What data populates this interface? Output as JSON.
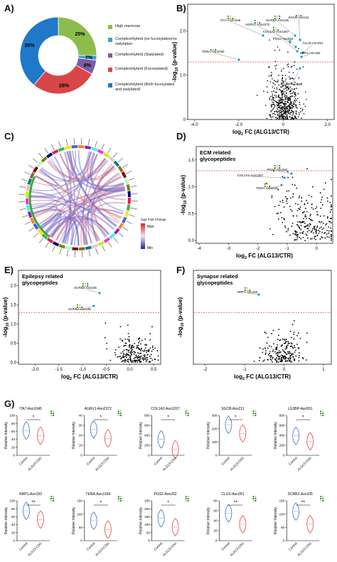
{
  "panels": {
    "A": {
      "letter": "A)"
    },
    "B": {
      "letter": "B)"
    },
    "C": {
      "letter": "C)"
    },
    "D": {
      "letter": "D)"
    },
    "E": {
      "letter": "E)"
    },
    "F": {
      "letter": "F)"
    },
    "G": {
      "letter": "G)"
    }
  },
  "pie": {
    "slices": [
      {
        "label": "High mannose",
        "pct": "25%",
        "value": 25,
        "color": "#8cbd4c"
      },
      {
        "label": "Complex/Hybrid (no fucosylation/no sialylation",
        "pct": "2%",
        "value": 2,
        "color": "#3f9fcf"
      },
      {
        "label": "Complex/Hybrid (Sialylated)",
        "pct": "6%",
        "value": 6,
        "color": "#7a5ca8"
      },
      {
        "label": "Complex/Hybrid (Fucosylated)",
        "pct": "28%",
        "value": 28,
        "color": "#d94647"
      },
      {
        "label": "Complex/Hybrid (Both fucosylated and sialylated)",
        "pct": "39%",
        "value": 39,
        "color": "#1f78c8"
      }
    ]
  },
  "volcano": {
    "ylabel": "-log10 (p-value)",
    "xlabel": "log2 FC (ALG13/CTR)",
    "B": {
      "xticks": [
        "-4.0",
        "-2.0",
        "0",
        "2.0"
      ],
      "yticks": [
        "2.0",
        "1.0",
        "0"
      ],
      "labels": [
        "ITA7-Asn1045",
        "AGRV1-Asn2372",
        "SCRB2-Asn105",
        "SGCB-Asn211",
        "COL1A2-Asn1267",
        "PGS2-Asn262",
        "CLUS-Asn291",
        "NRP1-Asn150",
        "TENA-Asn1034",
        "LG3BP-Asn551"
      ]
    },
    "D": {
      "title": "ECM related glycopeptides",
      "xticks": [
        "-4",
        "-3",
        "-2",
        "-1",
        "0"
      ],
      "yticks": [
        "1.5",
        "1.0",
        "0.5",
        "0.0"
      ],
      "labels": [
        "PGS2-Asn262",
        "COL1A2-Asn1267",
        "TENA-Asn1034"
      ]
    },
    "E": {
      "title": "Epilepsy related glycopeptides",
      "xticks": [
        "-2.0",
        "-1.5",
        "-1.0",
        "-0.5",
        "0.0",
        "0.5"
      ],
      "yticks": [
        "2.0",
        "1.5",
        "1.0",
        "0.5",
        "0.0"
      ],
      "labels": [
        "SCRB2-Asn105",
        "SCRB2-Asn105"
      ]
    },
    "F": {
      "title": "Synapse related glycopeptides",
      "xticks": [
        "-2",
        "-1",
        "0",
        "1"
      ],
      "yticks": [],
      "labels": [
        "NRP1-Asn150"
      ]
    }
  },
  "chord": {
    "legend_title": "log2 Fold Change",
    "legend_max": "Max",
    "legend_min": "Min"
  },
  "violins": {
    "ylabel": "Relative Intensity",
    "x1": "Control",
    "x2": "ALG13-CDG",
    "items": [
      {
        "name": "ITA7-Asn1045",
        "sig": "*",
        "ticks": [
          "100",
          "80",
          "60",
          "40",
          "20",
          "0"
        ],
        "max": 100,
        "c": 62,
        "a": 49
      },
      {
        "name": "AGRV1-Asn2372",
        "sig": "*",
        "ticks": [
          "40",
          "30",
          "20",
          "10",
          "0"
        ],
        "max": 40,
        "c": 26,
        "a": 17
      },
      {
        "name": "COL1A2-Asn1267",
        "sig": "*",
        "ticks": [
          "800",
          "600",
          "400",
          "200",
          "0"
        ],
        "max": 800,
        "c": 320,
        "a": 120
      },
      {
        "name": "SGCB-Asn211",
        "sig": "*",
        "ticks": [
          "300",
          "200",
          "100",
          "0"
        ],
        "max": 300,
        "c": 230,
        "a": 165
      },
      {
        "name": "LG3BP-Asn551",
        "sig": "*",
        "ticks": [
          "800",
          "600",
          "400",
          "200",
          "0"
        ],
        "max": 800,
        "c": 390,
        "a": 280
      },
      {
        "name": "NRP1-Asn150",
        "sig": "**",
        "ticks": [
          "100",
          "80",
          "60",
          "40",
          "20",
          "0"
        ],
        "max": 100,
        "c": 75,
        "a": 53
      },
      {
        "name": "TENA-Asn1034",
        "sig": "*",
        "ticks": [
          "150",
          "100",
          "50",
          "0"
        ],
        "max": 150,
        "c": 75,
        "a": 42
      },
      {
        "name": "PGS2-Asn262",
        "sig": "*",
        "ticks": [
          "250",
          "200",
          "150",
          "100",
          "50",
          "0"
        ],
        "max": 250,
        "c": 140,
        "a": 85
      },
      {
        "name": "CLUS-Asn291",
        "sig": "**",
        "ticks": [
          "80",
          "60",
          "40",
          "20",
          "0"
        ],
        "max": 80,
        "c": 55,
        "a": 33
      },
      {
        "name": "SCRB2-Asn105",
        "sig": "**",
        "ticks": [
          "150",
          "100",
          "50",
          "0"
        ],
        "max": 150,
        "c": 110,
        "a": 62
      }
    ]
  }
}
